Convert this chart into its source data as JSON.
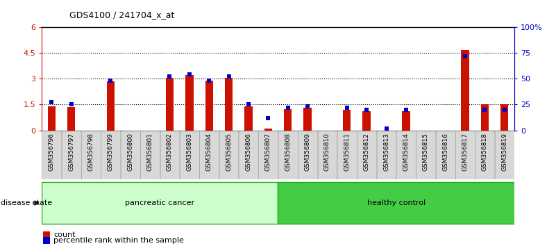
{
  "title": "GDS4100 / 241704_x_at",
  "samples": [
    "GSM356796",
    "GSM356797",
    "GSM356798",
    "GSM356799",
    "GSM356800",
    "GSM356801",
    "GSM356802",
    "GSM356803",
    "GSM356804",
    "GSM356805",
    "GSM356806",
    "GSM356807",
    "GSM356808",
    "GSM356809",
    "GSM356810",
    "GSM356811",
    "GSM356812",
    "GSM356813",
    "GSM356814",
    "GSM356815",
    "GSM356816",
    "GSM356817",
    "GSM356818",
    "GSM356819"
  ],
  "counts": [
    1.4,
    1.35,
    0.0,
    2.85,
    0.0,
    0.0,
    3.05,
    3.2,
    2.9,
    3.05,
    1.4,
    0.1,
    1.25,
    1.3,
    0.0,
    1.2,
    1.1,
    0.0,
    1.1,
    0.0,
    0.0,
    4.65,
    1.5,
    1.5
  ],
  "percentiles": [
    27,
    25,
    0,
    48,
    0,
    0,
    52,
    54,
    48,
    52,
    25,
    12,
    22,
    23,
    0,
    22,
    20,
    2,
    20,
    0,
    0,
    72,
    20,
    20
  ],
  "left_ylim": [
    0,
    6
  ],
  "right_ylim": [
    0,
    100
  ],
  "left_yticks": [
    0,
    1.5,
    3.0,
    4.5,
    6
  ],
  "right_yticks": [
    0,
    25,
    50,
    75,
    100
  ],
  "right_yticklabels": [
    "0",
    "25",
    "50",
    "75",
    "100%"
  ],
  "left_yticklabels": [
    "0",
    "1.5",
    "3",
    "4.5",
    "6"
  ],
  "group1_label": "pancreatic cancer",
  "group2_label": "healthy control",
  "bar_color": "#cc1100",
  "marker_color": "#0000cc",
  "bg_color": "#d8d8d8",
  "group1_bg": "#ccffcc",
  "group2_bg": "#44cc44",
  "legend_count": "count",
  "legend_pct": "percentile rank within the sample",
  "disease_state_label": "disease state"
}
